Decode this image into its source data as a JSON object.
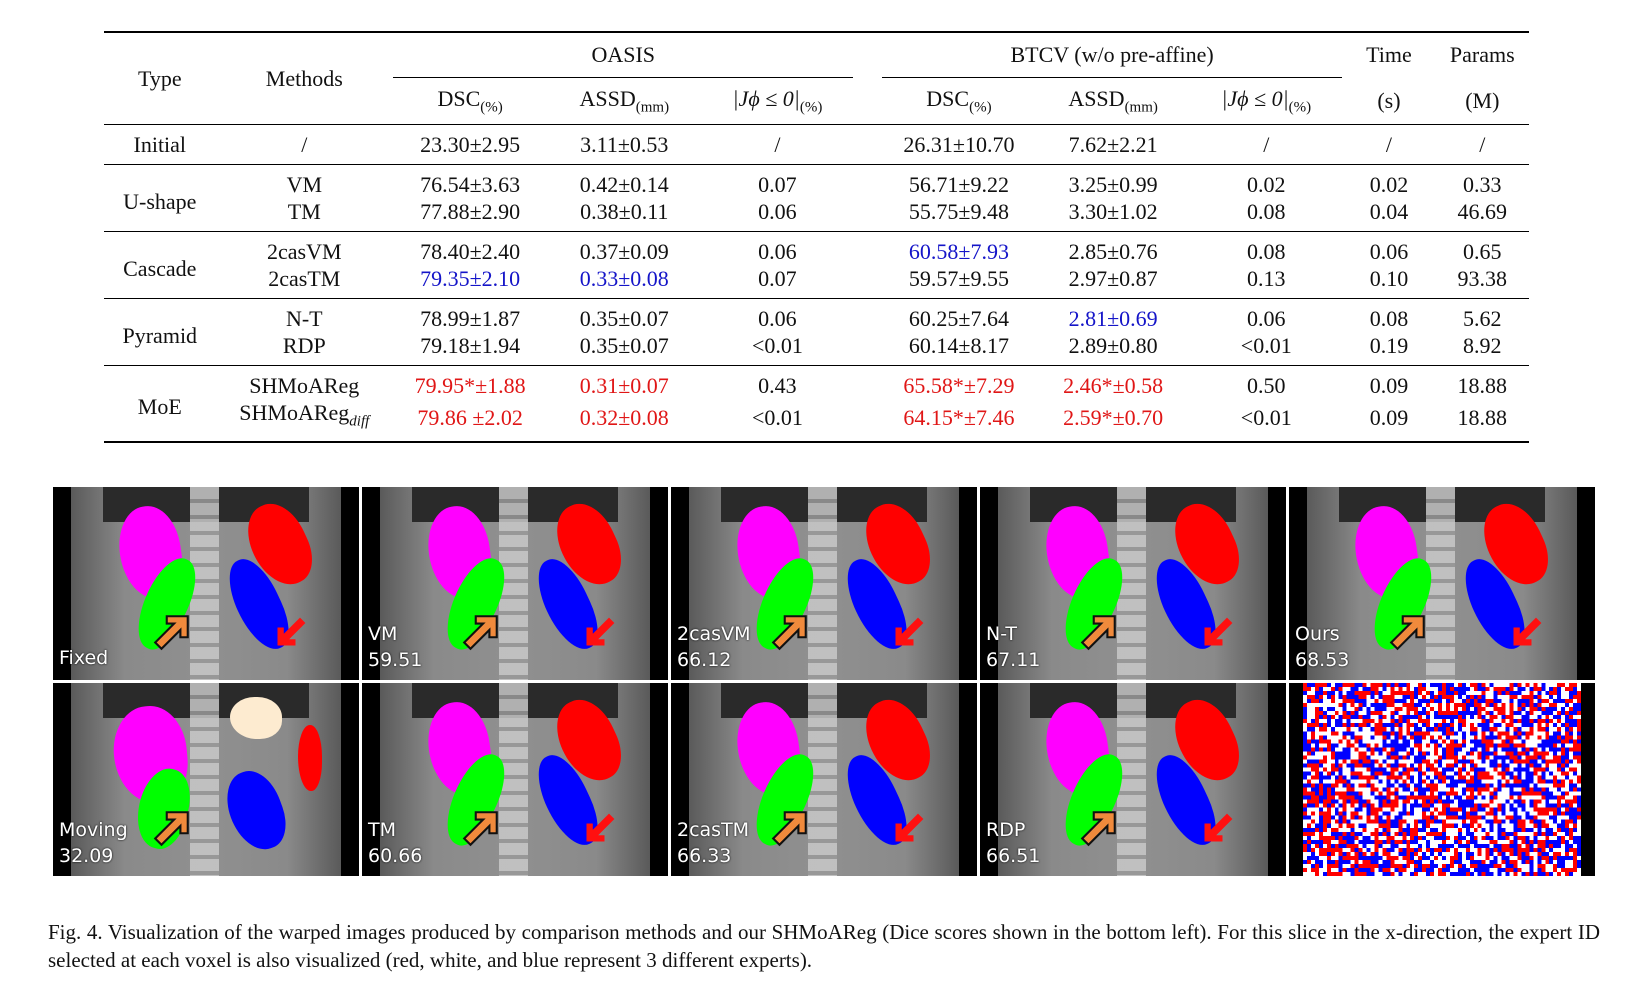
{
  "table": {
    "headers": {
      "type": "Type",
      "methods": "Methods",
      "group_oasis": "OASIS",
      "group_btcv": "BTCV (w/o pre-affine)",
      "time": "Time",
      "time_unit": "(s)",
      "params": "Params",
      "params_unit": "(M)",
      "dsc": "DSC",
      "dsc_unit": "(%)",
      "assd": "ASSD",
      "assd_unit": "(mm)",
      "jac": "|Jϕ ≤ 0|",
      "jac_unit": "(%)"
    },
    "groups": [
      {
        "type": "Initial",
        "rows": [
          {
            "method": "/",
            "oasis_dsc": "23.30±2.95",
            "oasis_assd": "3.11±0.53",
            "oasis_jac": "/",
            "btcv_dsc": "26.31±10.70",
            "btcv_assd": "7.62±2.21",
            "btcv_jac": "/",
            "time": "/",
            "params": "/"
          }
        ]
      },
      {
        "type": "U-shape",
        "rows": [
          {
            "method": "VM",
            "oasis_dsc": "76.54±3.63",
            "oasis_assd": "0.42±0.14",
            "oasis_jac": "0.07",
            "btcv_dsc": "56.71±9.22",
            "btcv_assd": "3.25±0.99",
            "btcv_jac": "0.02",
            "time": "0.02",
            "params": "0.33"
          },
          {
            "method": "TM",
            "oasis_dsc": "77.88±2.90",
            "oasis_assd": "0.38±0.11",
            "oasis_jac": "0.06",
            "btcv_dsc": "55.75±9.48",
            "btcv_assd": "3.30±1.02",
            "btcv_jac": "0.08",
            "time": "0.04",
            "params": "46.69"
          }
        ]
      },
      {
        "type": "Cascade",
        "rows": [
          {
            "method": "2casVM",
            "oasis_dsc": "78.40±2.40",
            "oasis_assd": "0.37±0.09",
            "oasis_jac": "0.06",
            "btcv_dsc": "60.58±7.93",
            "btcv_assd": "2.85±0.76",
            "btcv_jac": "0.08",
            "time": "0.06",
            "params": "0.65"
          },
          {
            "method": "2casTM",
            "oasis_dsc": "79.35±2.10",
            "oasis_assd": "0.33±0.08",
            "oasis_jac": "0.07",
            "btcv_dsc": "59.57±9.55",
            "btcv_assd": "2.97±0.87",
            "btcv_jac": "0.13",
            "time": "0.10",
            "params": "93.38"
          }
        ]
      },
      {
        "type": "Pyramid",
        "rows": [
          {
            "method": "N-T",
            "oasis_dsc": "78.99±1.87",
            "oasis_assd": "0.35±0.07",
            "oasis_jac": "0.06",
            "btcv_dsc": "60.25±7.64",
            "btcv_assd": "2.81±0.69",
            "btcv_jac": "0.06",
            "time": "0.08",
            "params": "5.62"
          },
          {
            "method": "RDP",
            "oasis_dsc": "79.18±1.94",
            "oasis_assd": "0.35±0.07",
            "oasis_jac": "<0.01",
            "btcv_dsc": "60.14±8.17",
            "btcv_assd": "2.89±0.80",
            "btcv_jac": "<0.01",
            "time": "0.19",
            "params": "8.92"
          }
        ]
      },
      {
        "type": "MoE",
        "rows": [
          {
            "method": "SHMoAReg",
            "method_sub": "",
            "oasis_dsc": "79.95*±1.88",
            "oasis_assd": "0.31±0.07",
            "oasis_jac": "0.43",
            "btcv_dsc": "65.58*±7.29",
            "btcv_assd": "2.46*±0.58",
            "btcv_jac": "0.50",
            "time": "0.09",
            "params": "18.88"
          },
          {
            "method": "SHMoAReg",
            "method_sub": "diff",
            "oasis_dsc": "79.86 ±2.02",
            "oasis_assd": "0.32±0.08",
            "oasis_jac": "<0.01",
            "btcv_dsc": "64.15*±7.46",
            "btcv_assd": "2.59*±0.70",
            "btcv_jac": "<0.01",
            "time": "0.09",
            "params": "18.88"
          }
        ]
      }
    ],
    "highlight_colors": {
      "best": "#e01616",
      "second": "#1414c8"
    }
  },
  "figure": {
    "panels_top": [
      {
        "name": "Fixed",
        "score": ""
      },
      {
        "name": "VM",
        "score": "59.51"
      },
      {
        "name": "2casVM",
        "score": "66.12"
      },
      {
        "name": "N-T",
        "score": "67.11"
      },
      {
        "name": "Ours",
        "score": "68.53"
      }
    ],
    "panels_bottom": [
      {
        "name": "Moving",
        "score": "32.09"
      },
      {
        "name": "TM",
        "score": "60.66"
      },
      {
        "name": "2casTM",
        "score": "66.33"
      },
      {
        "name": "RDP",
        "score": "66.51"
      },
      {
        "name": "",
        "score": "",
        "kind": "expert-map"
      }
    ],
    "expert_colors": [
      "#ff0000",
      "#ffffff",
      "#0000ff"
    ],
    "caption": "Fig. 4.  Visualization of the warped images produced by comparison methods and our SHMoAReg  (Dice scores shown in the bottom left). For this slice in the x-direction, the expert ID selected at each voxel is also visualized (red, white, and blue represent 3 different experts)."
  }
}
